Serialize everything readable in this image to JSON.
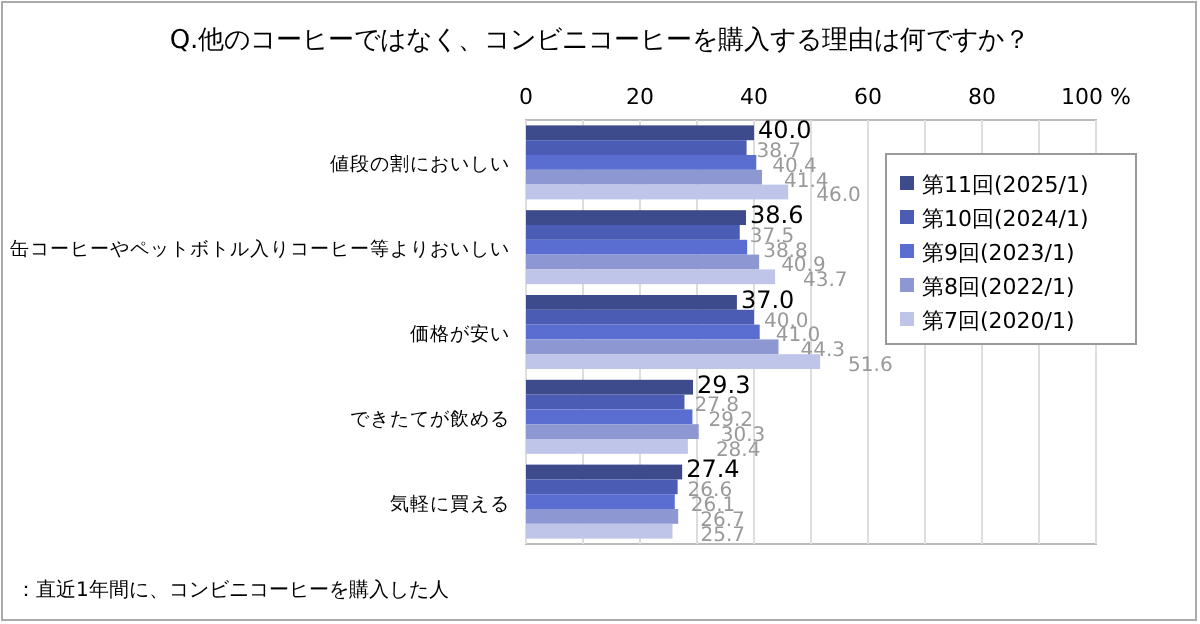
{
  "chart_data": {
    "type": "bar",
    "orientation": "horizontal",
    "title": "Q.他のコーヒーではなく、コンビニコーヒーを購入する理由は何ですか？",
    "categories": [
      "値段の割においしい",
      "缶コーヒーやペットボトル入りコーヒー等よりおいしい",
      "価格が安い",
      "できたてが飲める",
      "気軽に買える"
    ],
    "series": [
      {
        "name": "第11回(2025/1)",
        "color": "#3d4a8c",
        "values": [
          40.0,
          38.6,
          37.0,
          29.3,
          27.4
        ],
        "value_labels": [
          "40.0",
          "38.6",
          "37.0",
          "29.3",
          "27.4"
        ]
      },
      {
        "name": "第10回(2024/1)",
        "color": "#4b5cb4",
        "values": [
          38.7,
          37.5,
          40.0,
          27.8,
          26.6
        ],
        "value_labels": [
          "38.7",
          "37.5",
          "40.0",
          "27.8",
          "26.6"
        ]
      },
      {
        "name": "第9回(2023/1)",
        "color": "#5a6ed2",
        "values": [
          40.4,
          38.8,
          41.0,
          29.2,
          26.1
        ],
        "value_labels": [
          "40.4",
          "38.8",
          "41.0",
          "29.2",
          "26.1"
        ]
      },
      {
        "name": "第8回(2022/1)",
        "color": "#8d98d2",
        "values": [
          41.4,
          40.9,
          44.3,
          30.3,
          26.7
        ],
        "value_labels": [
          "41.4",
          "40.9",
          "44.3",
          "30.3",
          "26.7"
        ]
      },
      {
        "name": "第7回(2020/1)",
        "color": "#bfc5e8",
        "values": [
          46.0,
          43.7,
          51.6,
          28.4,
          25.7
        ],
        "value_labels": [
          "46.0",
          "43.7",
          "51.6",
          "28.4",
          "25.7"
        ]
      }
    ],
    "xlim": [
      0,
      100
    ],
    "xticks": [
      0,
      {
        "value": 10,
        "label": null
      },
      20,
      {
        "value": 30,
        "label": null
      },
      40,
      {
        "value": 50,
        "label": null
      },
      60,
      {
        "value": 70,
        "label": null
      },
      80,
      {
        "value": 90,
        "label": null
      },
      {
        "value": 100,
        "label": "100 %"
      }
    ],
    "grid": "x",
    "legend": "top right",
    "annotations": [
      "：直近1年間に、コンビニコーヒーを購入した人"
    ]
  }
}
